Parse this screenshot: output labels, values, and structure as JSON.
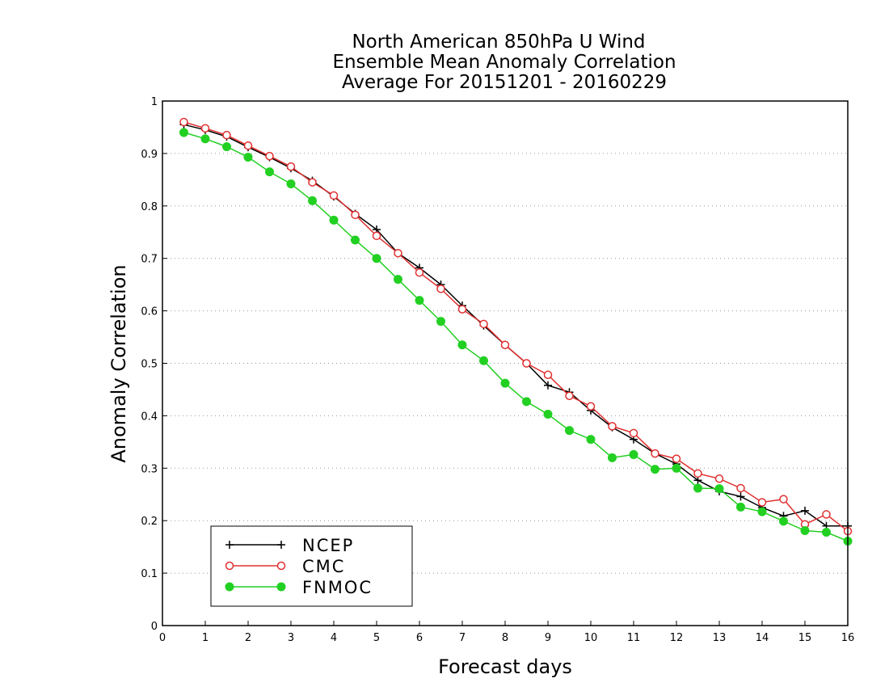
{
  "chart_data": {
    "type": "line",
    "title": [
      "North American 850hPa U Wind",
      "Ensemble Mean Anomaly Correlation",
      "Average For 20151201 - 20160229"
    ],
    "xlabel": "Forecast days",
    "ylabel": "Anomaly Correlation",
    "xlim": [
      0,
      16
    ],
    "ylim": [
      0,
      1
    ],
    "x_ticks": [
      "0",
      "1",
      "2",
      "3",
      "4",
      "5",
      "6",
      "7",
      "8",
      "9",
      "10",
      "11",
      "12",
      "13",
      "14",
      "15",
      "16"
    ],
    "y_ticks": [
      "0",
      "0.1",
      "0.2",
      "0.3",
      "0.4",
      "0.5",
      "0.6",
      "0.7",
      "0.8",
      "0.9",
      "1"
    ],
    "grid": "horizontal-dotted",
    "legend_position": "bottom-left",
    "x": [
      0.5,
      1,
      1.5,
      2,
      2.5,
      3,
      3.5,
      4,
      4.5,
      5,
      5.5,
      6,
      6.5,
      7,
      7.5,
      8,
      8.5,
      9,
      9.5,
      10,
      10.5,
      11,
      11.5,
      12,
      12.5,
      13,
      13.5,
      14,
      14.5,
      15,
      15.5,
      16
    ],
    "series": [
      {
        "name": "NCEP",
        "color": "#000000",
        "marker": "plus",
        "values": [
          0.955,
          0.945,
          0.932,
          0.912,
          0.893,
          0.872,
          0.848,
          0.818,
          0.785,
          0.755,
          0.71,
          0.682,
          0.65,
          0.61,
          0.572,
          0.535,
          0.5,
          0.458,
          0.445,
          0.41,
          0.378,
          0.355,
          0.328,
          0.308,
          0.277,
          0.256,
          0.246,
          0.225,
          0.209,
          0.219,
          0.19,
          0.19
        ]
      },
      {
        "name": "CMC",
        "color": "#e03030",
        "marker": "open-circle",
        "values": [
          0.96,
          0.948,
          0.935,
          0.915,
          0.895,
          0.875,
          0.845,
          0.82,
          0.783,
          0.743,
          0.71,
          0.673,
          0.642,
          0.603,
          0.575,
          0.535,
          0.5,
          0.478,
          0.438,
          0.418,
          0.38,
          0.367,
          0.328,
          0.318,
          0.29,
          0.28,
          0.262,
          0.235,
          0.241,
          0.193,
          0.212,
          0.18
        ]
      },
      {
        "name": "FNMOC",
        "color": "#22d022",
        "marker": "filled-circle",
        "values": [
          0.94,
          0.928,
          0.913,
          0.893,
          0.865,
          0.842,
          0.81,
          0.773,
          0.735,
          0.7,
          0.66,
          0.62,
          0.58,
          0.535,
          0.505,
          0.462,
          0.427,
          0.403,
          0.372,
          0.355,
          0.32,
          0.326,
          0.298,
          0.3,
          0.262,
          0.261,
          0.226,
          0.217,
          0.199,
          0.181,
          0.178,
          0.161
        ]
      }
    ]
  }
}
